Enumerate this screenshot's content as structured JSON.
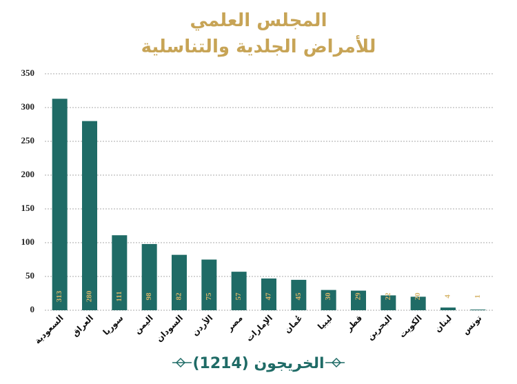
{
  "chart_data": {
    "type": "bar",
    "title_lines": [
      "المجلس العلمي",
      "للأمراض الجلدية والتناسلية"
    ],
    "categories": [
      "السعودية",
      "العراق",
      "سوريا",
      "اليمن",
      "السودان",
      "الأردن",
      "مصر",
      "الإمارات",
      "عُمان",
      "ليبيا",
      "قطر",
      "البحرين",
      "الكويت",
      "لبنان",
      "تونس"
    ],
    "values": [
      313,
      280,
      111,
      98,
      82,
      75,
      57,
      47,
      45,
      30,
      29,
      22,
      20,
      4,
      1
    ],
    "color": "#1f6b66",
    "label_color": "#d6b56b",
    "ylim": [
      0,
      350
    ],
    "yticks": [
      0,
      50,
      100,
      150,
      200,
      250,
      300,
      350
    ],
    "grid": true,
    "footer": "الخريجون (1214)"
  }
}
